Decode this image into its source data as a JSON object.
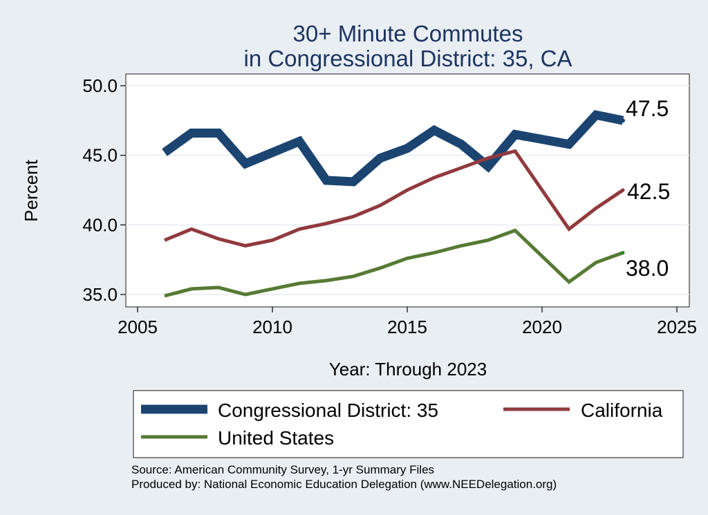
{
  "chart_data": {
    "type": "line",
    "title": "30+ Minute Commutes",
    "subtitle": "in Congressional District:  35, CA",
    "xlabel": "Year: Through 2023",
    "ylabel": "Percent",
    "xlim": [
      2005,
      2025
    ],
    "ylim": [
      34.8,
      50.5
    ],
    "x_ticks": [
      2005,
      2010,
      2015,
      2020,
      2025
    ],
    "x_tick_labels": [
      "2005",
      "2010",
      "2015",
      "2020",
      "2025"
    ],
    "y_ticks": [
      35,
      40,
      45,
      50
    ],
    "y_tick_labels": [
      "35.0",
      "40.0",
      "45.0",
      "50.0"
    ],
    "grid": true,
    "legend_position": "bottom",
    "series": [
      {
        "name": "Congressional District:  35",
        "color": "#1b4471",
        "x": [
          2006,
          2007,
          2008,
          2009,
          2010,
          2011,
          2012,
          2013,
          2014,
          2015,
          2016,
          2017,
          2018,
          2019,
          2021,
          2022,
          2023
        ],
        "values": [
          45.2,
          46.6,
          46.6,
          44.4,
          45.2,
          46.0,
          43.2,
          43.1,
          44.8,
          45.5,
          46.8,
          45.8,
          44.2,
          46.5,
          45.8,
          47.9,
          47.5
        ],
        "end_label": "47.5"
      },
      {
        "name": "California",
        "color": "#913a3e",
        "x": [
          2006,
          2007,
          2008,
          2009,
          2010,
          2011,
          2012,
          2013,
          2014,
          2015,
          2016,
          2017,
          2018,
          2019,
          2021,
          2022,
          2023
        ],
        "values": [
          38.9,
          39.7,
          39.0,
          38.5,
          38.9,
          39.7,
          40.1,
          40.6,
          41.4,
          42.5,
          43.4,
          44.1,
          44.8,
          45.3,
          39.7,
          41.2,
          42.5
        ],
        "end_label": "42.5"
      },
      {
        "name": "United States",
        "color": "#577a34",
        "x": [
          2006,
          2007,
          2008,
          2009,
          2010,
          2011,
          2012,
          2013,
          2014,
          2015,
          2016,
          2017,
          2018,
          2019,
          2021,
          2022,
          2023
        ],
        "values": [
          34.9,
          35.4,
          35.5,
          35.0,
          35.4,
          35.8,
          36.0,
          36.3,
          36.9,
          37.6,
          38.0,
          38.5,
          38.9,
          39.6,
          35.9,
          37.3,
          38.0
        ],
        "end_label": "38.0"
      }
    ],
    "end_marker_color": "#1a8a1a",
    "source_lines": [
      "Source: American Community Survey, 1-yr Summary Files",
      "Produced by: National Economic Education Delegation (www.NEEDelegation.org)"
    ]
  }
}
